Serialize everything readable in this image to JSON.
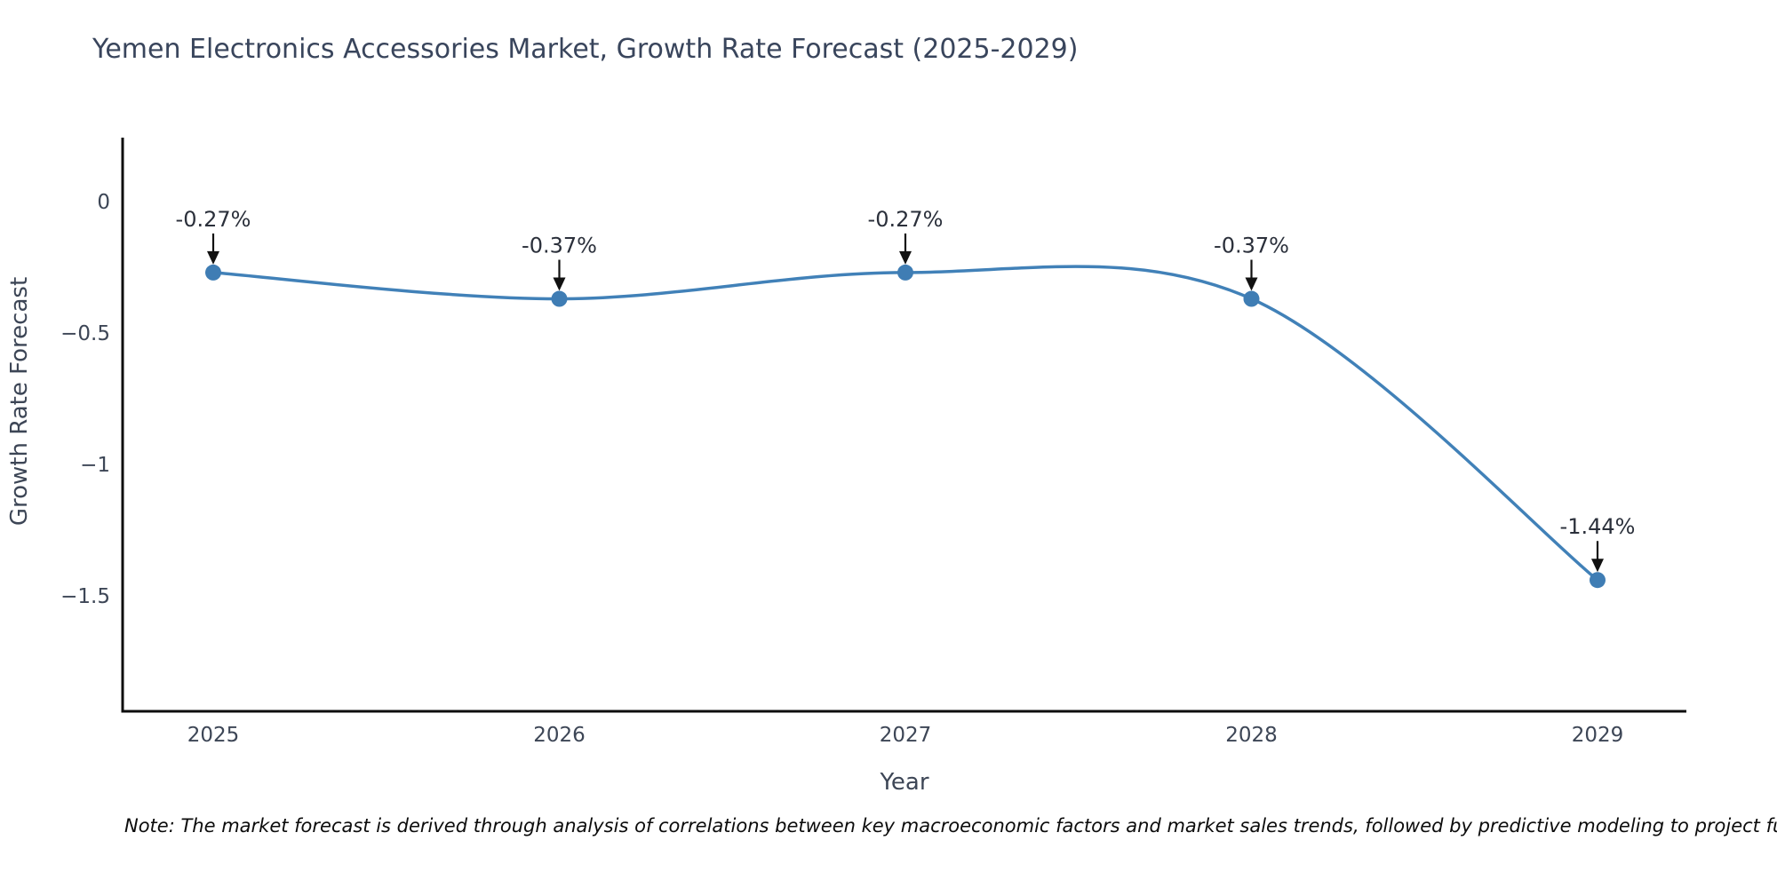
{
  "note": {
    "text": "Note: The market forecast is derived through analysis of correlations between key macroeconomic factors and market sales trends, followed by predictive modeling to project future sa"
  },
  "chart_data": {
    "type": "line",
    "title": "Yemen Electronics Accessories Market, Growth Rate Forecast (2025-2029)",
    "xlabel": "Year",
    "ylabel": "Growth Rate Forecast",
    "categories": [
      "2025",
      "2026",
      "2027",
      "2028",
      "2029"
    ],
    "series": [
      {
        "name": "Growth Rate Forecast",
        "values": [
          -0.27,
          -0.37,
          -0.27,
          -0.37,
          -1.44
        ]
      }
    ],
    "point_labels": [
      "-0.27%",
      "-0.37%",
      "-0.27%",
      "-0.37%",
      "-1.44%"
    ],
    "y_ticks": [
      {
        "label": "0",
        "value": 0
      },
      {
        "label": "−0.5",
        "value": -0.5
      },
      {
        "label": "−1",
        "value": -1
      },
      {
        "label": "−1.5",
        "value": -1.5
      }
    ],
    "ylim": [
      -1.94,
      0.24
    ],
    "grid": false,
    "legend": false,
    "line_color": "#4181b8",
    "marker_color": "#3f7db4",
    "axis_color": "#0d0d0d",
    "tick_text_color": "#3d4656",
    "annotation_text_color": "#2b303b",
    "annotation_arrow_color": "#111111",
    "background_color": "#ffffff"
  }
}
